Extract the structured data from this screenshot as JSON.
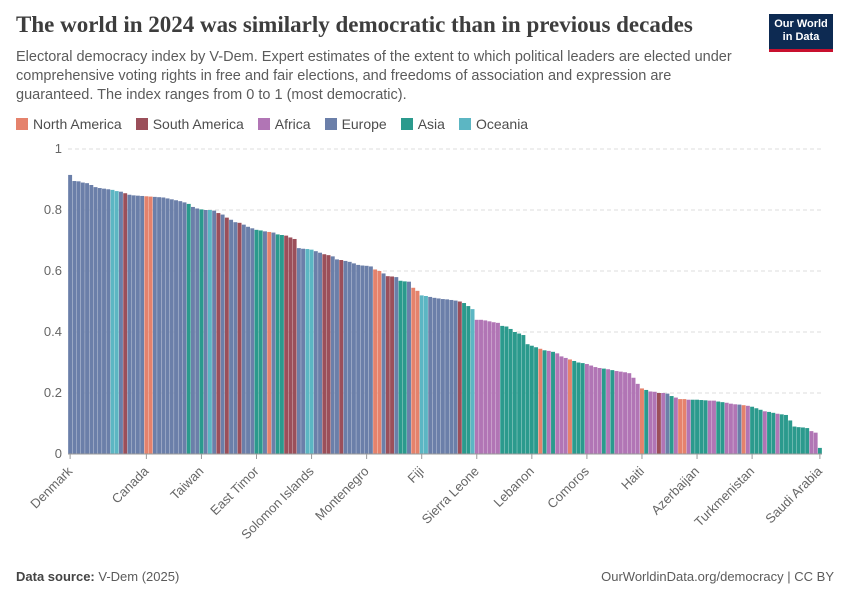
{
  "chart_data": {
    "type": "bar",
    "title": "The world in 2024 was similarly democratic than in previous decades",
    "subtitle": "Electoral democracy index by V-Dem. Expert estimates of the extent to which political leaders are elected under comprehensive voting rights in free and fair elections, and freedoms of association and expression are guaranteed. The index ranges from 0 to 1 (most democratic).",
    "logo": [
      "Our World",
      "in Data"
    ],
    "source_label": "Data source:",
    "source": "V-Dem (2025)",
    "url": "OurWorldinData.org/democracy | CC BY",
    "legend": [
      {
        "name": "North America",
        "color": "#e5826c"
      },
      {
        "name": "South America",
        "color": "#9b4f5a"
      },
      {
        "name": "Africa",
        "color": "#b175b5"
      },
      {
        "name": "Europe",
        "color": "#6b7fa9"
      },
      {
        "name": "Asia",
        "color": "#2b9a8d"
      },
      {
        "name": "Oceania",
        "color": "#5cb6c3"
      }
    ],
    "ylim": [
      0,
      1
    ],
    "yticks": [
      0,
      0.2,
      0.4,
      0.6,
      0.8,
      1
    ],
    "grid": true,
    "categories": [
      "Denmark",
      null,
      null,
      null,
      null,
      null,
      null,
      null,
      null,
      null,
      null,
      null,
      null,
      null,
      null,
      null,
      null,
      null,
      "Canada",
      null,
      null,
      null,
      null,
      null,
      null,
      null,
      null,
      null,
      null,
      null,
      null,
      "Taiwan",
      null,
      null,
      null,
      null,
      null,
      null,
      null,
      null,
      null,
      null,
      null,
      null,
      "East Timor",
      null,
      null,
      null,
      null,
      null,
      null,
      null,
      null,
      null,
      null,
      null,
      null,
      "Solomon Islands",
      null,
      null,
      null,
      null,
      null,
      null,
      null,
      null,
      null,
      null,
      null,
      null,
      "Montenegro",
      null,
      null,
      null,
      null,
      null,
      null,
      null,
      null,
      null,
      null,
      null,
      null,
      "Fiji",
      null,
      null,
      null,
      null,
      null,
      null,
      null,
      null,
      null,
      null,
      null,
      null,
      "Sierra Leone",
      null,
      null,
      null,
      null,
      null,
      null,
      null,
      null,
      null,
      null,
      null,
      null,
      "Lebanon",
      null,
      null,
      null,
      null,
      null,
      null,
      null,
      null,
      null,
      null,
      null,
      null,
      "Comoros",
      null,
      null,
      null,
      null,
      null,
      null,
      null,
      null,
      null,
      null,
      null,
      null,
      "Haiti",
      null,
      null,
      null,
      null,
      null,
      null,
      null,
      null,
      null,
      null,
      null,
      null,
      "Azerbaijan",
      null,
      null,
      null,
      null,
      null,
      null,
      null,
      null,
      null,
      null,
      null,
      null,
      "Turkmenistan",
      null,
      null,
      null,
      null,
      null,
      null,
      null,
      null,
      null,
      null,
      null,
      null,
      null,
      null,
      null,
      "Saudi Arabia"
    ],
    "values": [
      0.915,
      0.895,
      0.894,
      0.89,
      0.888,
      0.882,
      0.875,
      0.872,
      0.87,
      0.868,
      0.866,
      0.862,
      0.86,
      0.855,
      0.85,
      0.848,
      0.847,
      0.846,
      0.845,
      0.844,
      0.843,
      0.842,
      0.841,
      0.838,
      0.835,
      0.832,
      0.829,
      0.825,
      0.82,
      0.81,
      0.805,
      0.802,
      0.8,
      0.8,
      0.798,
      0.79,
      0.785,
      0.775,
      0.768,
      0.76,
      0.758,
      0.752,
      0.745,
      0.74,
      0.735,
      0.733,
      0.73,
      0.728,
      0.726,
      0.72,
      0.718,
      0.716,
      0.71,
      0.705,
      0.675,
      0.673,
      0.672,
      0.67,
      0.665,
      0.66,
      0.655,
      0.652,
      0.648,
      0.638,
      0.636,
      0.633,
      0.63,
      0.625,
      0.62,
      0.618,
      0.617,
      0.615,
      0.605,
      0.6,
      0.592,
      0.583,
      0.582,
      0.58,
      0.568,
      0.566,
      0.565,
      0.545,
      0.535,
      0.52,
      0.518,
      0.515,
      0.512,
      0.51,
      0.508,
      0.507,
      0.505,
      0.503,
      0.5,
      0.495,
      0.485,
      0.475,
      0.44,
      0.44,
      0.438,
      0.435,
      0.432,
      0.43,
      0.42,
      0.418,
      0.41,
      0.4,
      0.395,
      0.39,
      0.36,
      0.355,
      0.35,
      0.345,
      0.34,
      0.338,
      0.335,
      0.33,
      0.32,
      0.315,
      0.31,
      0.305,
      0.3,
      0.298,
      0.295,
      0.29,
      0.285,
      0.282,
      0.28,
      0.278,
      0.275,
      0.272,
      0.27,
      0.268,
      0.265,
      0.25,
      0.23,
      0.215,
      0.21,
      0.205,
      0.204,
      0.2,
      0.2,
      0.198,
      0.19,
      0.185,
      0.18,
      0.18,
      0.178,
      0.178,
      0.178,
      0.177,
      0.176,
      0.175,
      0.175,
      0.172,
      0.17,
      0.168,
      0.165,
      0.163,
      0.162,
      0.16,
      0.158,
      0.155,
      0.15,
      0.145,
      0.14,
      0.138,
      0.135,
      0.132,
      0.13,
      0.128,
      0.11,
      0.09,
      0.088,
      0.087,
      0.085,
      0.075,
      0.07,
      0.02
    ],
    "colors": [
      "#6b7fa9",
      "#6b7fa9",
      "#6b7fa9",
      "#6b7fa9",
      "#6b7fa9",
      "#6b7fa9",
      "#6b7fa9",
      "#6b7fa9",
      "#6b7fa9",
      "#6b7fa9",
      "#5cb6c3",
      "#5cb6c3",
      "#6b7fa9",
      "#9b4f5a",
      "#6b7fa9",
      "#6b7fa9",
      "#6b7fa9",
      "#6b7fa9",
      "#e5826c",
      "#e5826c",
      "#6b7fa9",
      "#6b7fa9",
      "#6b7fa9",
      "#6b7fa9",
      "#6b7fa9",
      "#6b7fa9",
      "#6b7fa9",
      "#6b7fa9",
      "#2b9a8d",
      "#6b7fa9",
      "#6b7fa9",
      "#2b9a8d",
      "#6b7fa9",
      "#5cb6c3",
      "#6b7fa9",
      "#9b4f5a",
      "#6b7fa9",
      "#9b4f5a",
      "#6b7fa9",
      "#6b7fa9",
      "#9b4f5a",
      "#6b7fa9",
      "#6b7fa9",
      "#6b7fa9",
      "#2b9a8d",
      "#2b9a8d",
      "#6b7fa9",
      "#e5826c",
      "#6b7fa9",
      "#2b9a8d",
      "#2b9a8d",
      "#9b4f5a",
      "#9b4f5a",
      "#9b4f5a",
      "#6b7fa9",
      "#6b7fa9",
      "#5cb6c3",
      "#5cb6c3",
      "#6b7fa9",
      "#6b7fa9",
      "#9b4f5a",
      "#9b4f5a",
      "#6b7fa9",
      "#6b7fa9",
      "#9b4f5a",
      "#6b7fa9",
      "#6b7fa9",
      "#6b7fa9",
      "#6b7fa9",
      "#6b7fa9",
      "#6b7fa9",
      "#6b7fa9",
      "#e5826c",
      "#e5826c",
      "#6b7fa9",
      "#9b4f5a",
      "#9b4f5a",
      "#6b7fa9",
      "#2b9a8d",
      "#2b9a8d",
      "#6b7fa9",
      "#e5826c",
      "#e5826c",
      "#5cb6c3",
      "#5cb6c3",
      "#6b7fa9",
      "#6b7fa9",
      "#6b7fa9",
      "#6b7fa9",
      "#6b7fa9",
      "#6b7fa9",
      "#6b7fa9",
      "#9b4f5a",
      "#2b9a8d",
      "#2b9a8d",
      "#5cb6c3",
      "#b175b5",
      "#b175b5",
      "#b175b5",
      "#b175b5",
      "#b175b5",
      "#b175b5",
      "#2b9a8d",
      "#2b9a8d",
      "#2b9a8d",
      "#2b9a8d",
      "#2b9a8d",
      "#2b9a8d",
      "#2b9a8d",
      "#2b9a8d",
      "#2b9a8d",
      "#e5826c",
      "#2b9a8d",
      "#b175b5",
      "#2b9a8d",
      "#b175b5",
      "#b175b5",
      "#b175b5",
      "#e5826c",
      "#2b9a8d",
      "#2b9a8d",
      "#2b9a8d",
      "#b175b5",
      "#b175b5",
      "#b175b5",
      "#b175b5",
      "#2b9a8d",
      "#b175b5",
      "#2b9a8d",
      "#b175b5",
      "#b175b5",
      "#b175b5",
      "#b175b5",
      "#b175b5",
      "#b175b5",
      "#e5826c",
      "#2b9a8d",
      "#b175b5",
      "#b175b5",
      "#9b4f5a",
      "#b175b5",
      "#6b7fa9",
      "#2b9a8d",
      "#b175b5",
      "#e5826c",
      "#e5826c",
      "#b175b5",
      "#2b9a8d",
      "#2b9a8d",
      "#2b9a8d",
      "#2b9a8d",
      "#b175b5",
      "#b175b5",
      "#2b9a8d",
      "#2b9a8d",
      "#b175b5",
      "#b175b5",
      "#b175b5",
      "#6b7fa9",
      "#e5826c",
      "#b175b5",
      "#2b9a8d",
      "#2b9a8d",
      "#2b9a8d",
      "#b175b5",
      "#2b9a8d",
      "#2b9a8d",
      "#b175b5",
      "#2b9a8d",
      "#2b9a8d",
      "#2b9a8d",
      "#2b9a8d",
      "#2b9a8d",
      "#2b9a8d",
      "#2b9a8d",
      "#b175b5",
      "#b175b5",
      "#2b9a8d"
    ]
  }
}
